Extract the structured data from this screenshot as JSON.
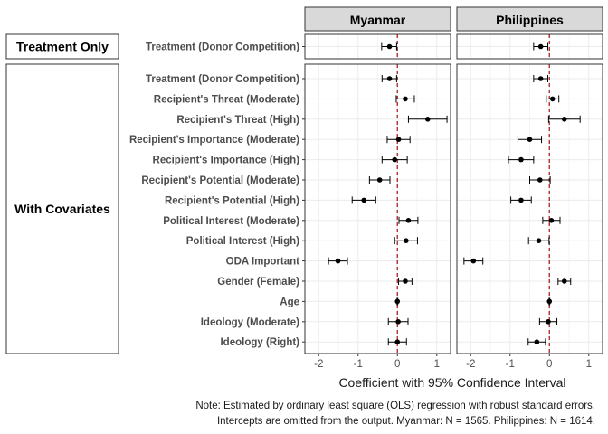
{
  "chart_data": {
    "type": "scatter",
    "subtype": "coefficient-plot-with-error-bars",
    "xlabel": "Coefficient with 95% Confidence Interval",
    "xlim": [
      -2.35,
      1.35
    ],
    "xticks": [
      -2,
      -1,
      0,
      1
    ],
    "reference_line": {
      "x": 0,
      "color": "#e41a1c",
      "style": "dashed"
    },
    "columns": [
      "Myanmar",
      "Philippines"
    ],
    "rows": [
      {
        "name": "Treatment Only",
        "terms": [
          "Treatment (Donor Competition)"
        ]
      },
      {
        "name": "With Covariates",
        "terms": [
          "Treatment (Donor Competition)",
          "Recipient's Threat (Moderate)",
          "Recipient's Threat (High)",
          "Recipient's Importance (Moderate)",
          "Recipient's Importance (High)",
          "Recipient's Potential (Moderate)",
          "Recipient's Potential (High)",
          "Political Interest (Moderate)",
          "Political Interest (High)",
          "ODA Important",
          "Gender (Female)",
          "Age",
          "Ideology (Moderate)",
          "Ideology (Right)"
        ]
      }
    ],
    "estimates": {
      "Treatment Only": {
        "Myanmar": [
          {
            "coef": -0.2,
            "lo": -0.4,
            "hi": -0.02
          }
        ],
        "Philippines": [
          {
            "coef": -0.22,
            "lo": -0.4,
            "hi": -0.04
          }
        ]
      },
      "With Covariates": {
        "Myanmar": [
          {
            "coef": -0.2,
            "lo": -0.39,
            "hi": -0.02
          },
          {
            "coef": 0.2,
            "lo": -0.03,
            "hi": 0.43
          },
          {
            "coef": 0.77,
            "lo": 0.28,
            "hi": 1.26
          },
          {
            "coef": 0.03,
            "lo": -0.26,
            "hi": 0.32
          },
          {
            "coef": -0.07,
            "lo": -0.39,
            "hi": 0.25
          },
          {
            "coef": -0.45,
            "lo": -0.71,
            "hi": -0.19
          },
          {
            "coef": -0.85,
            "lo": -1.15,
            "hi": -0.55
          },
          {
            "coef": 0.28,
            "lo": 0.04,
            "hi": 0.52
          },
          {
            "coef": 0.22,
            "lo": -0.07,
            "hi": 0.51
          },
          {
            "coef": -1.51,
            "lo": -1.75,
            "hi": -1.27
          },
          {
            "coef": 0.2,
            "lo": 0.03,
            "hi": 0.37
          },
          {
            "coef": 0.0,
            "lo": -0.01,
            "hi": 0.01
          },
          {
            "coef": 0.02,
            "lo": -0.23,
            "hi": 0.27
          },
          {
            "coef": 0.0,
            "lo": -0.23,
            "hi": 0.23
          }
        ],
        "Philippines": [
          {
            "coef": -0.22,
            "lo": -0.4,
            "hi": -0.04
          },
          {
            "coef": 0.08,
            "lo": -0.08,
            "hi": 0.24
          },
          {
            "coef": 0.38,
            "lo": -0.02,
            "hi": 0.78
          },
          {
            "coef": -0.5,
            "lo": -0.8,
            "hi": -0.2
          },
          {
            "coef": -0.72,
            "lo": -1.04,
            "hi": -0.4
          },
          {
            "coef": -0.24,
            "lo": -0.5,
            "hi": 0.02
          },
          {
            "coef": -0.72,
            "lo": -0.98,
            "hi": -0.46
          },
          {
            "coef": 0.05,
            "lo": -0.17,
            "hi": 0.27
          },
          {
            "coef": -0.27,
            "lo": -0.53,
            "hi": -0.01
          },
          {
            "coef": -1.93,
            "lo": -2.17,
            "hi": -1.69
          },
          {
            "coef": 0.38,
            "lo": 0.22,
            "hi": 0.54
          },
          {
            "coef": 0.0,
            "lo": -0.01,
            "hi": 0.01
          },
          {
            "coef": -0.03,
            "lo": -0.25,
            "hi": 0.19
          },
          {
            "coef": -0.32,
            "lo": -0.54,
            "hi": -0.1
          }
        ]
      }
    },
    "note": [
      "Note: Estimated by ordinary least square (OLS) regression with robust standard errors.",
      "Intercepts are omitted from the output. Myanmar: N = 1565. Philippines: N = 1614."
    ],
    "colors": {
      "point": "#000000",
      "refline": "#e41a1c",
      "grid": "#ebebeb",
      "strip_fill": "#d9d9d9",
      "panel_border": "#333333"
    }
  }
}
